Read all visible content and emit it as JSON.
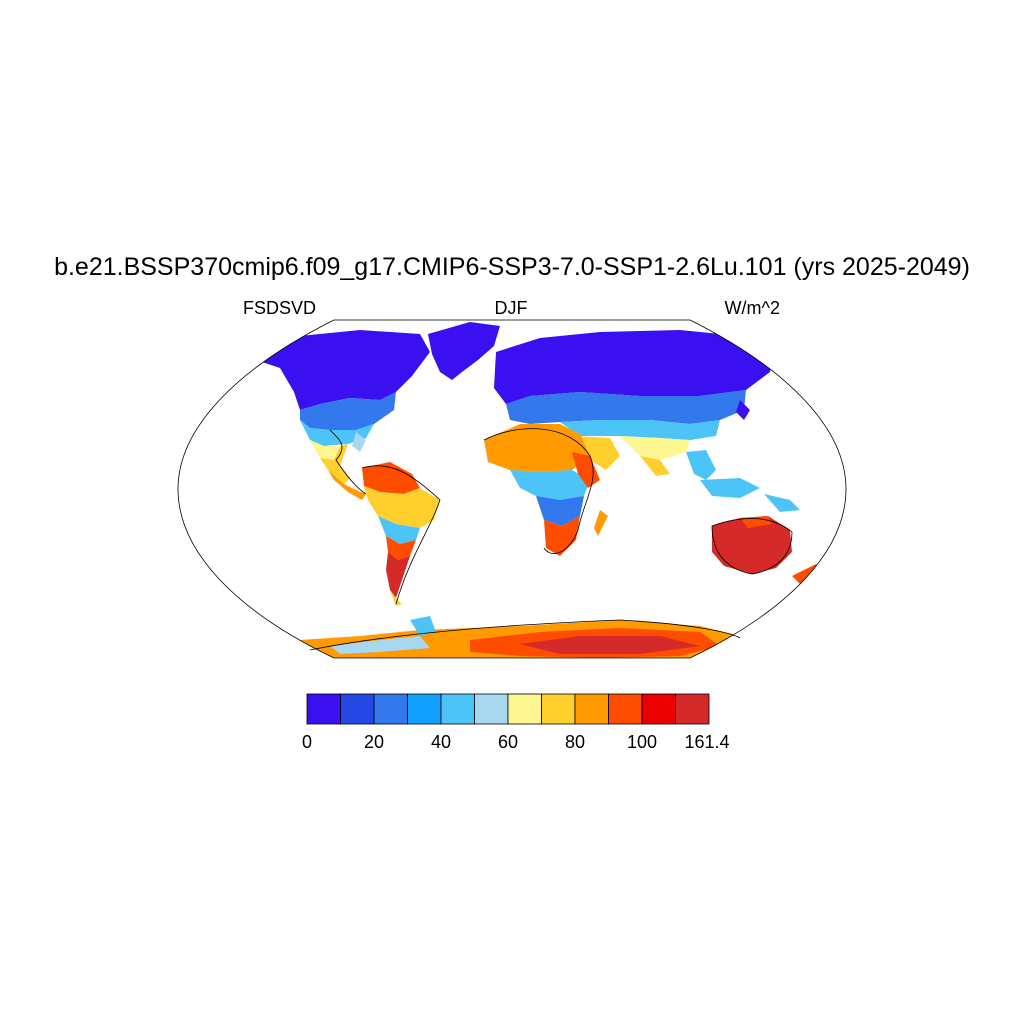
{
  "header": {
    "title": "b.e21.BSSP370cmip6.f09_g17.CMIP6-SSP3-7.0-SSP1-2.6Lu.101 (yrs 2025-2049)",
    "left_label": "FSDSVD",
    "center_label": "DJF",
    "right_label": "W/m^2"
  },
  "map": {
    "projection": "robinson",
    "land_only": true
  },
  "colorbar": {
    "colors": [
      "#3a0ff0",
      "#2548e6",
      "#3378ec",
      "#12a0ff",
      "#4cc4f8",
      "#a8d8f0",
      "#fdf590",
      "#ffcf2e",
      "#ff9a00",
      "#ff4d00",
      "#ec0000",
      "#d42a2a"
    ],
    "tick_labels": [
      "0",
      "20",
      "40",
      "60",
      "80",
      "100",
      "161.4"
    ]
  }
}
